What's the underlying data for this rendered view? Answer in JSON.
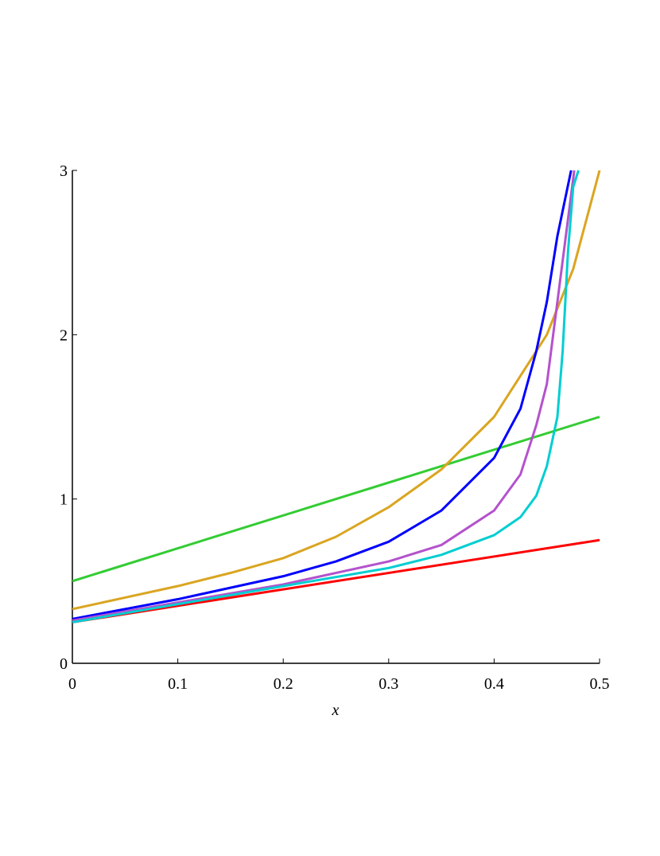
{
  "chart_data": {
    "type": "line",
    "xlabel": "x",
    "xlim": [
      0,
      0.5
    ],
    "ylim": [
      0,
      3
    ],
    "xticks": [
      0,
      0.1,
      0.2,
      0.3,
      0.4,
      0.5
    ],
    "yticks": [
      0,
      1,
      2,
      3
    ],
    "series": [
      {
        "color": "#ff0000",
        "x": [
          0,
          0.5
        ],
        "values": [
          0.25,
          0.75
        ]
      },
      {
        "color": "#33cc33",
        "x": [
          0,
          0.5
        ],
        "values": [
          0.5,
          1.5
        ]
      },
      {
        "color": "#daa520",
        "x": [
          0,
          0.05,
          0.1,
          0.15,
          0.2,
          0.25,
          0.3,
          0.35,
          0.4,
          0.45,
          0.475,
          0.5
        ],
        "values": [
          0.33,
          0.4,
          0.47,
          0.55,
          0.64,
          0.77,
          0.95,
          1.18,
          1.5,
          2.0,
          2.4,
          3.0
        ]
      },
      {
        "color": "#0000ff",
        "x": [
          0,
          0.1,
          0.2,
          0.25,
          0.3,
          0.35,
          0.4,
          0.425,
          0.44,
          0.45,
          0.46,
          0.473
        ],
        "values": [
          0.27,
          0.39,
          0.53,
          0.62,
          0.74,
          0.93,
          1.25,
          1.55,
          1.9,
          2.2,
          2.6,
          3.0
        ]
      },
      {
        "color": "#b452cd",
        "x": [
          0,
          0.1,
          0.2,
          0.3,
          0.35,
          0.4,
          0.425,
          0.44,
          0.45,
          0.46,
          0.47,
          0.476
        ],
        "values": [
          0.26,
          0.37,
          0.48,
          0.62,
          0.72,
          0.93,
          1.15,
          1.45,
          1.7,
          2.2,
          2.7,
          3.0
        ]
      },
      {
        "color": "#00ced1",
        "x": [
          0,
          0.1,
          0.2,
          0.3,
          0.35,
          0.4,
          0.425,
          0.44,
          0.45,
          0.46,
          0.465,
          0.47,
          0.475,
          0.48
        ],
        "values": [
          0.25,
          0.36,
          0.47,
          0.58,
          0.66,
          0.78,
          0.89,
          1.02,
          1.2,
          1.5,
          1.9,
          2.5,
          2.9,
          3.0
        ]
      }
    ]
  }
}
